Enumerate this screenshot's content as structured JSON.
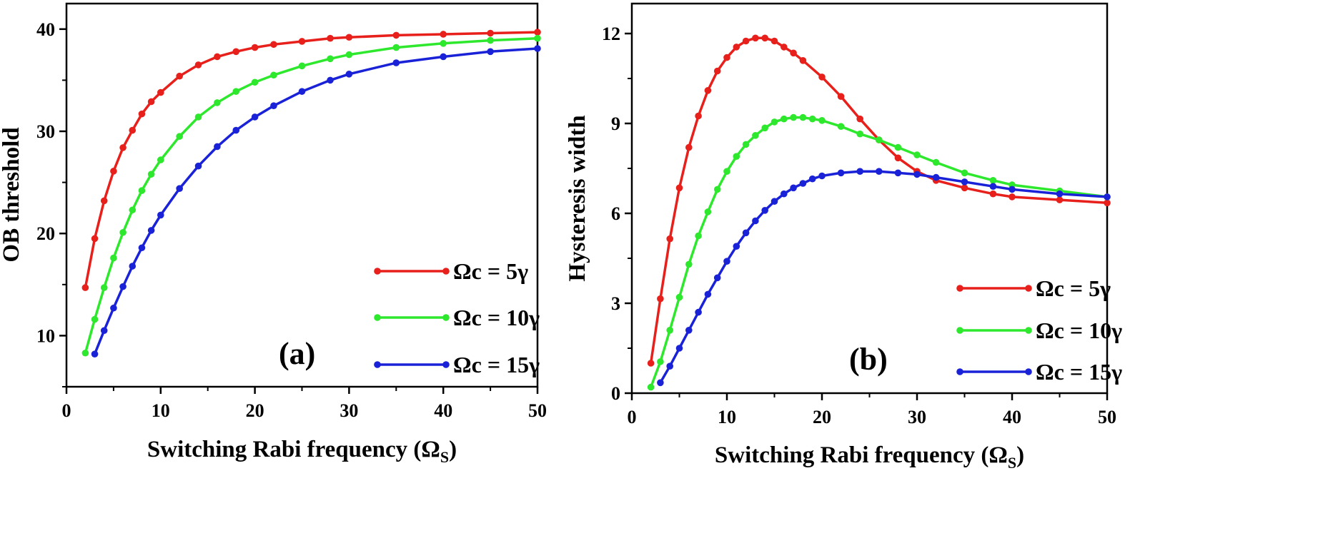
{
  "chart_data": [
    {
      "type": "line",
      "panel_label": "(a)",
      "xlabel": "Switching Rabi frequency (Ω",
      "xlabel_sub": "S",
      "xlabel_close": ")",
      "ylabel": "OB threshold",
      "xlim": [
        0,
        50
      ],
      "ylim": [
        5,
        42.5
      ],
      "xticks": [
        "0",
        "10",
        "20",
        "30",
        "40",
        "50"
      ],
      "yticks": [
        "10",
        "20",
        "30",
        "40"
      ],
      "legend_position": "bottom-right",
      "series": [
        {
          "name": "Ωc = 5γ",
          "color": "#e8201c",
          "x": [
            2,
            3,
            4,
            5,
            6,
            7,
            8,
            9,
            10,
            12,
            14,
            16,
            18,
            20,
            22,
            25,
            28,
            30,
            35,
            40,
            45,
            50
          ],
          "y": [
            14.7,
            19.5,
            23.2,
            26.1,
            28.4,
            30.1,
            31.7,
            32.9,
            33.8,
            35.4,
            36.5,
            37.3,
            37.8,
            38.2,
            38.5,
            38.8,
            39.1,
            39.2,
            39.4,
            39.5,
            39.6,
            39.7
          ]
        },
        {
          "name": "Ωc = 10γ",
          "color": "#2ee82e",
          "x": [
            2,
            3,
            4,
            5,
            6,
            7,
            8,
            9,
            10,
            12,
            14,
            16,
            18,
            20,
            22,
            25,
            28,
            30,
            35,
            40,
            45,
            50
          ],
          "y": [
            8.3,
            11.6,
            14.7,
            17.6,
            20.1,
            22.3,
            24.2,
            25.8,
            27.2,
            29.5,
            31.4,
            32.8,
            33.9,
            34.8,
            35.5,
            36.4,
            37.1,
            37.5,
            38.2,
            38.6,
            38.9,
            39.1
          ]
        },
        {
          "name": "Ωc = 15γ",
          "color": "#1a22d8",
          "x": [
            3,
            4,
            5,
            6,
            7,
            8,
            9,
            10,
            12,
            14,
            16,
            18,
            20,
            22,
            25,
            28,
            30,
            35,
            40,
            45,
            50
          ],
          "y": [
            8.2,
            10.5,
            12.7,
            14.8,
            16.8,
            18.6,
            20.3,
            21.8,
            24.4,
            26.6,
            28.5,
            30.1,
            31.4,
            32.5,
            33.9,
            35.0,
            35.6,
            36.7,
            37.3,
            37.8,
            38.1
          ]
        }
      ]
    },
    {
      "type": "line",
      "panel_label": "(b)",
      "xlabel": "Switching Rabi frequency (Ω",
      "xlabel_sub": "S",
      "xlabel_close": ")",
      "ylabel": "Hysteresis width",
      "xlim": [
        0,
        50
      ],
      "ylim": [
        0,
        13
      ],
      "xticks": [
        "0",
        "10",
        "20",
        "30",
        "40",
        "50"
      ],
      "yticks": [
        "0",
        "3",
        "6",
        "9",
        "12"
      ],
      "legend_position": "bottom-right",
      "series": [
        {
          "name": "Ωc = 5γ",
          "color": "#e8201c",
          "x": [
            2,
            3,
            4,
            5,
            6,
            7,
            8,
            9,
            10,
            11,
            12,
            13,
            14,
            15,
            16,
            17,
            18,
            20,
            22,
            24,
            26,
            28,
            30,
            32,
            35,
            38,
            40,
            45,
            50
          ],
          "y": [
            1.0,
            3.15,
            5.15,
            6.85,
            8.2,
            9.25,
            10.1,
            10.75,
            11.2,
            11.55,
            11.75,
            11.85,
            11.85,
            11.75,
            11.55,
            11.35,
            11.1,
            10.55,
            9.9,
            9.15,
            8.45,
            7.85,
            7.4,
            7.1,
            6.85,
            6.65,
            6.55,
            6.45,
            6.35
          ]
        },
        {
          "name": "Ωc = 10γ",
          "color": "#2ee82e",
          "x": [
            2,
            3,
            4,
            5,
            6,
            7,
            8,
            9,
            10,
            11,
            12,
            13,
            14,
            15,
            16,
            17,
            18,
            19,
            20,
            22,
            24,
            26,
            28,
            30,
            32,
            35,
            38,
            40,
            45,
            50
          ],
          "y": [
            0.2,
            1.05,
            2.1,
            3.2,
            4.3,
            5.25,
            6.05,
            6.8,
            7.4,
            7.9,
            8.3,
            8.6,
            8.85,
            9.05,
            9.15,
            9.2,
            9.2,
            9.15,
            9.1,
            8.9,
            8.65,
            8.45,
            8.2,
            7.95,
            7.7,
            7.35,
            7.1,
            6.95,
            6.75,
            6.55
          ]
        },
        {
          "name": "Ωc = 15γ",
          "color": "#1a22d8",
          "x": [
            3,
            4,
            5,
            6,
            7,
            8,
            9,
            10,
            11,
            12,
            13,
            14,
            15,
            16,
            17,
            18,
            19,
            20,
            22,
            24,
            26,
            28,
            30,
            32,
            35,
            38,
            40,
            45,
            50
          ],
          "y": [
            0.35,
            0.9,
            1.5,
            2.1,
            2.7,
            3.3,
            3.85,
            4.4,
            4.9,
            5.35,
            5.75,
            6.1,
            6.4,
            6.65,
            6.85,
            7.0,
            7.15,
            7.25,
            7.35,
            7.4,
            7.4,
            7.35,
            7.3,
            7.2,
            7.05,
            6.9,
            6.8,
            6.65,
            6.55
          ]
        }
      ]
    }
  ]
}
